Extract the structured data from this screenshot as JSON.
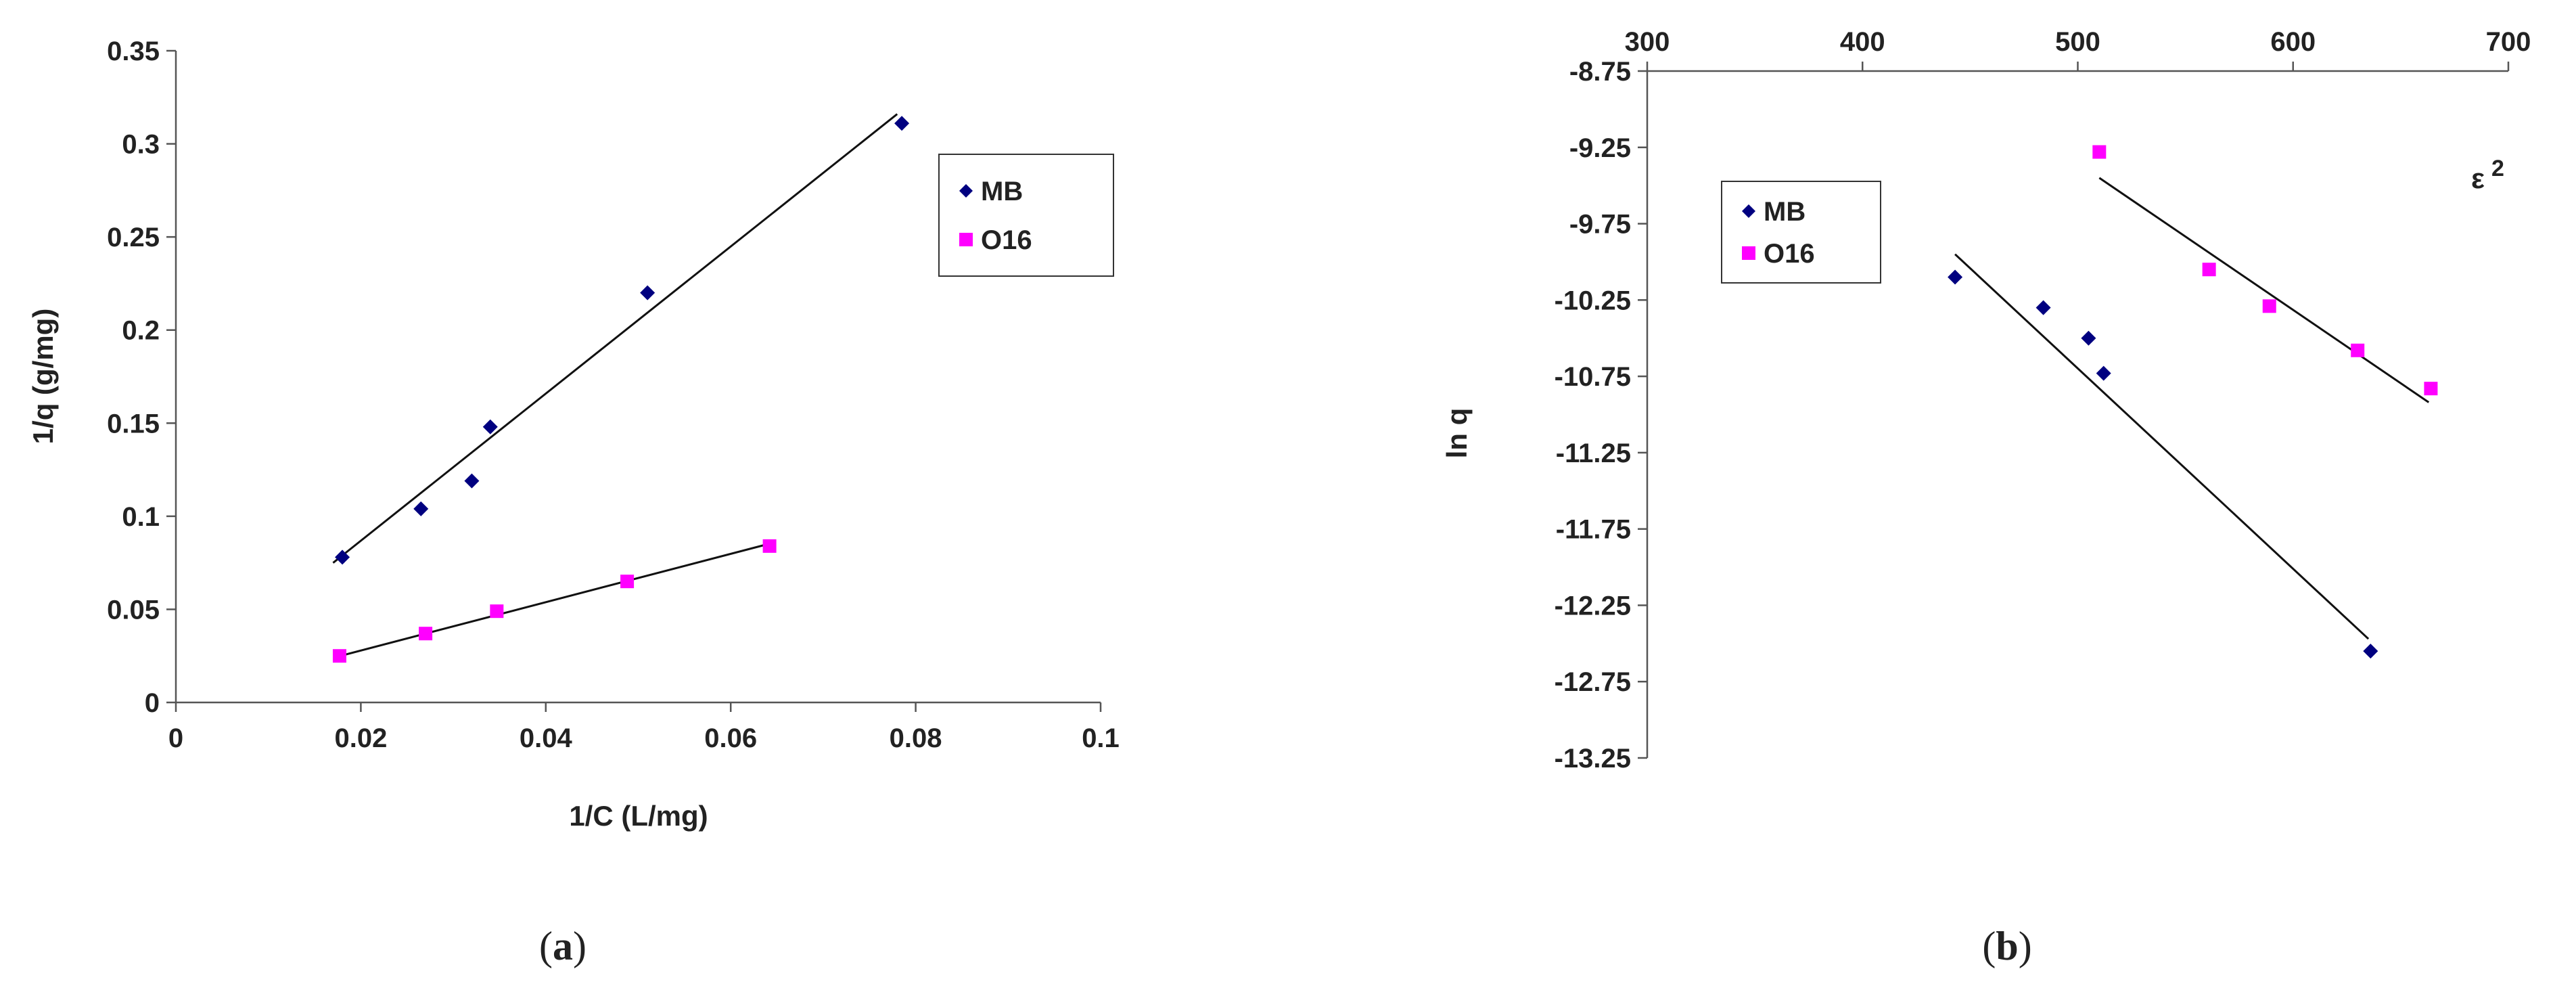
{
  "chart_data": [
    {
      "type": "scatter",
      "panel_label": "a",
      "xlabel": "1/C (L/mg)",
      "ylabel": "1/q (g/mg)",
      "xlim": [
        0,
        0.1
      ],
      "ylim": [
        0,
        0.35
      ],
      "xticks": [
        "0",
        "0.02",
        "0.04",
        "0.06",
        "0.08",
        "0.1"
      ],
      "yticks": [
        "0",
        "0.05",
        "0.1",
        "0.15",
        "0.2",
        "0.25",
        "0.3",
        "0.35"
      ],
      "grid": false,
      "legend_position": "right",
      "series": [
        {
          "name": "MB",
          "marker": "diamond",
          "color": "#000080",
          "x": [
            0.018,
            0.0265,
            0.032,
            0.034,
            0.051,
            0.0785
          ],
          "y": [
            0.078,
            0.104,
            0.119,
            0.148,
            0.22,
            0.311
          ],
          "trendline": {
            "x": [
              0.017,
              0.078
            ],
            "y": [
              0.075,
              0.316
            ]
          }
        },
        {
          "name": "O16",
          "marker": "square",
          "color": "#FF00FF",
          "x": [
            0.0177,
            0.027,
            0.0347,
            0.0488,
            0.0642
          ],
          "y": [
            0.025,
            0.037,
            0.049,
            0.065,
            0.084
          ],
          "trendline": {
            "x": [
              0.017,
              0.064
            ],
            "y": [
              0.024,
              0.085
            ]
          }
        }
      ]
    },
    {
      "type": "scatter",
      "panel_label": "b",
      "xlabel": "ε",
      "xlabel_superscript": "2",
      "ylabel": "ln q",
      "xlim": [
        300,
        700
      ],
      "ylim": [
        -13.25,
        -8.75
      ],
      "x_axis_position": "top",
      "xticks": [
        "300",
        "400",
        "500",
        "600",
        "700"
      ],
      "yticks": [
        "-8.75",
        "-9.25",
        "-9.75",
        "-10.25",
        "-10.75",
        "-11.25",
        "-11.75",
        "-12.25",
        "-12.75",
        "-13.25"
      ],
      "grid": false,
      "legend_position": "left",
      "series": [
        {
          "name": "MB",
          "marker": "diamond",
          "color": "#000080",
          "x": [
            443,
            484,
            505,
            512,
            636
          ],
          "y": [
            -10.1,
            -10.3,
            -10.5,
            -10.73,
            -12.55
          ],
          "trendline": {
            "x": [
              443,
              635
            ],
            "y": [
              -9.95,
              -12.47
            ]
          }
        },
        {
          "name": "O16",
          "marker": "square",
          "color": "#FF00FF",
          "x": [
            510,
            561,
            589,
            630,
            664
          ],
          "y": [
            -9.28,
            -10.05,
            -10.29,
            -10.58,
            -10.83
          ],
          "trendline": {
            "x": [
              510,
              663
            ],
            "y": [
              -9.45,
              -10.92
            ]
          }
        }
      ]
    }
  ]
}
